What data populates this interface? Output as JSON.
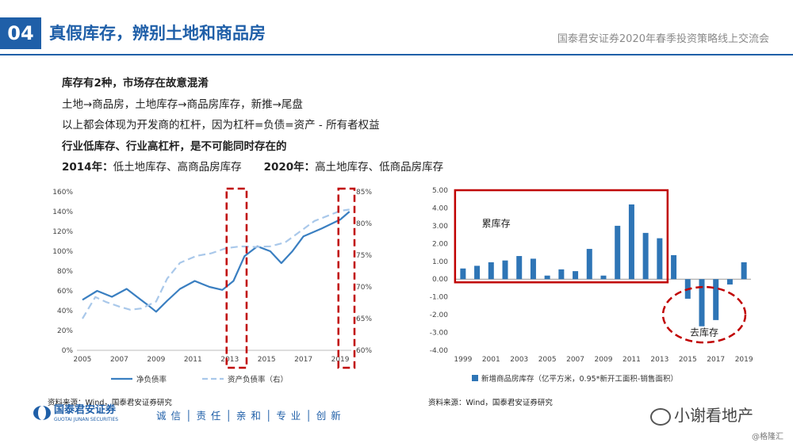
{
  "header": {
    "section_number": "04",
    "title": "真假库存，辨别土地和商品房",
    "subtitle": "国泰君安证券2020年春季投资策略线上交流会"
  },
  "bullets": {
    "line1": "库存有2种，市场存在故意混淆",
    "line2": "土地→商品房，土地库存→商品房库存，新推→尾盘",
    "line3": "以上都会体现为开发商的杠杆，因为杠杆=负债=资产 - 所有者权益",
    "line4": "行业低库存、行业高杠杆，是不可能同时存在的",
    "line5a_bold": "2014年：",
    "line5a": "低土地库存、高商品房库存",
    "line5b_bold": "2020年：",
    "line5b": "高土地库存、低商品房库存"
  },
  "chart_data": [
    {
      "type": "line",
      "x_ticks": [
        "2005",
        "2007",
        "2009",
        "2011",
        "2013",
        "2015",
        "2017",
        "2019"
      ],
      "y_left_ticks": [
        "0%",
        "20%",
        "40%",
        "60%",
        "80%",
        "100%",
        "120%",
        "140%",
        "160%"
      ],
      "y_right_ticks": [
        "60%",
        "65%",
        "70%",
        "75%",
        "80%",
        "85%"
      ],
      "ylim_left": [
        0,
        160
      ],
      "ylim_right": [
        60,
        85
      ],
      "xlim": [
        2004.7,
        2019.6
      ],
      "series": [
        {
          "name": "净负债率",
          "axis": "left",
          "color": "#3a7fc1",
          "style": "solid",
          "points": [
            [
              2005.0,
              51
            ],
            [
              2005.8,
              60
            ],
            [
              2006.6,
              54
            ],
            [
              2007.4,
              62
            ],
            [
              2008.1,
              52
            ],
            [
              2008.6,
              45
            ],
            [
              2009.0,
              39
            ],
            [
              2009.6,
              50
            ],
            [
              2010.3,
              62
            ],
            [
              2011.1,
              70
            ],
            [
              2011.9,
              64
            ],
            [
              2012.6,
              61
            ],
            [
              2013.2,
              70
            ],
            [
              2013.8,
              95
            ],
            [
              2014.5,
              105
            ],
            [
              2015.2,
              100
            ],
            [
              2015.8,
              88
            ],
            [
              2016.4,
              100
            ],
            [
              2017.0,
              115
            ],
            [
              2018.0,
              123
            ],
            [
              2019.0,
              132
            ],
            [
              2019.5,
              140
            ]
          ]
        },
        {
          "name": "资产负债率（右）",
          "axis": "right",
          "color": "#a9c8ea",
          "style": "dashed",
          "points": [
            [
              2005.0,
              65.0
            ],
            [
              2005.7,
              68.4
            ],
            [
              2006.3,
              67.6
            ],
            [
              2007.0,
              66.9
            ],
            [
              2007.6,
              66.4
            ],
            [
              2008.2,
              66.6
            ],
            [
              2009.0,
              67.7
            ],
            [
              2009.6,
              71.3
            ],
            [
              2010.3,
              73.8
            ],
            [
              2011.2,
              74.9
            ],
            [
              2012.0,
              75.3
            ],
            [
              2012.8,
              76.1
            ],
            [
              2013.6,
              76.4
            ],
            [
              2014.4,
              76.3
            ],
            [
              2015.2,
              76.4
            ],
            [
              2016.0,
              77.0
            ],
            [
              2016.8,
              78.7
            ],
            [
              2017.6,
              80.4
            ],
            [
              2018.4,
              81.3
            ],
            [
              2019.0,
              82.0
            ],
            [
              2019.5,
              82.2
            ]
          ]
        }
      ]
    },
    {
      "type": "bar",
      "categories": [
        "1999",
        "2000",
        "2001",
        "2002",
        "2003",
        "2004",
        "2005",
        "2006",
        "2007",
        "2008",
        "2009",
        "2010",
        "2011",
        "2012",
        "2013",
        "2014",
        "2015",
        "2016",
        "2017",
        "2018",
        "2019"
      ],
      "x_tick_labels": [
        "1999",
        "2001",
        "2003",
        "2005",
        "2007",
        "2009",
        "2011",
        "2013",
        "2015",
        "2017",
        "2019"
      ],
      "series": [
        {
          "name": "新增商品房库存（亿平方米，0.95*新开工面积-销售面积）",
          "color": "#2e75b6",
          "values": [
            0.6,
            0.75,
            0.95,
            1.05,
            1.3,
            1.15,
            0.2,
            0.55,
            0.45,
            1.7,
            0.2,
            3.0,
            4.2,
            2.6,
            2.3,
            1.35,
            -1.1,
            -2.65,
            -2.3,
            -0.3,
            0.95
          ]
        }
      ],
      "y_ticks": [
        "5.00",
        "4.00",
        "3.00",
        "2.00",
        "1.00",
        "0.00",
        "-1.00",
        "-2.00",
        "-3.00",
        "-4.00"
      ],
      "ylim": [
        -4,
        5
      ],
      "annotations": {
        "box_label": "累库存",
        "ellipse_label": "去库存"
      }
    }
  ],
  "sources": {
    "left": "资料来源：Wind，国泰君安证券研究",
    "right": "资料来源：Wind，国泰君安证券研究"
  },
  "footer": {
    "logo_text": "国泰君安证券",
    "logo_en": "GUOTAI JUNAN SECURITIES",
    "slogan": "诚 信 │ 责 任 │ 亲 和 │ 专 业 │ 创 新",
    "watermark": "小谢看地产",
    "credit": "@格隆汇"
  },
  "colors": {
    "brand": "#1f5fa8",
    "highlight": "#c00000"
  }
}
